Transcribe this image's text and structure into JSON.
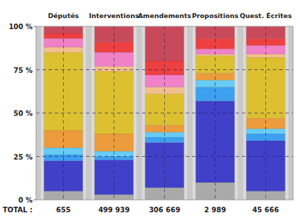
{
  "chart_data": {
    "type": "bar",
    "stacked": true,
    "grid": true,
    "categories": [
      "Députés",
      "Interventions",
      "Amendements",
      "Propositions",
      "Quest. Écrites"
    ],
    "ylim": [
      0,
      100
    ],
    "yticks": [
      {
        "value": 0,
        "label": "0 %"
      },
      {
        "value": 25,
        "label": "25 %"
      },
      {
        "value": 50,
        "label": "50 %"
      },
      {
        "value": 75,
        "label": "75 %"
      },
      {
        "value": 100,
        "label": "100 %"
      }
    ],
    "series": [
      {
        "color": "#aaaaaa",
        "values": [
          5,
          3,
          7,
          10,
          5
        ]
      },
      {
        "color": "#4040c8",
        "values": [
          17.5,
          20,
          26,
          47,
          29
        ]
      },
      {
        "color": "#3da0f0",
        "values": [
          3.5,
          2,
          3,
          8,
          4
        ]
      },
      {
        "color": "#66ccf5",
        "values": [
          4,
          3,
          3,
          4,
          3
        ]
      },
      {
        "color": "#ec9c3c",
        "values": [
          10,
          10,
          4,
          4,
          6
        ]
      },
      {
        "color": "#dcc030",
        "values": [
          45,
          36,
          18,
          10,
          35
        ]
      },
      {
        "color": "#f2c08c",
        "values": [
          3,
          3,
          4,
          1,
          2
        ]
      },
      {
        "color": "#f080c8",
        "values": [
          5,
          8,
          7,
          3,
          5
        ]
      },
      {
        "color": "#ee4040",
        "values": [
          3,
          6,
          8,
          6,
          4
        ]
      },
      {
        "color": "#c84a5a",
        "values": [
          4,
          9,
          20,
          7,
          7
        ]
      }
    ],
    "totals_label": "TOTAL :",
    "totals": [
      "655",
      "499 939",
      "306 669",
      "2 989",
      "45 666"
    ]
  }
}
